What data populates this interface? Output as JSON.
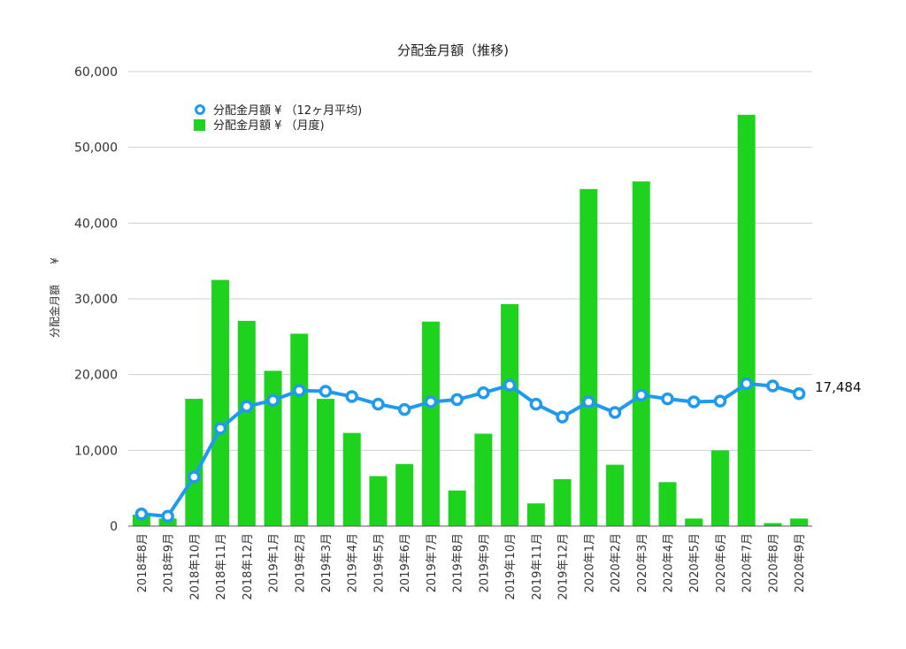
{
  "chart_data": {
    "type": "bar",
    "title": "分配金月額（推移)",
    "ylabel": "分配金月額",
    "ylabel_unit": "¥",
    "ylim": [
      0,
      60000
    ],
    "yticks": [
      0,
      10000,
      20000,
      30000,
      40000,
      50000,
      60000
    ],
    "ytick_labels": [
      "0",
      "10,000",
      "20,000",
      "30,000",
      "40,000",
      "50,000",
      "60,000"
    ],
    "grid": true,
    "legend_position": "top-left",
    "categories": [
      "2018年8月",
      "2018年9月",
      "2018年10月",
      "2018年11月",
      "2018年12月",
      "2019年1月",
      "2019年2月",
      "2019年3月",
      "2019年4月",
      "2019年5月",
      "2019年6月",
      "2019年7月",
      "2019年8月",
      "2019年9月",
      "2019年10月",
      "2019年11月",
      "2019年12月",
      "2020年1月",
      "2020年2月",
      "2020年3月",
      "2020年4月",
      "2020年5月",
      "2020年6月",
      "2020年7月",
      "2020年8月",
      "2020年9月"
    ],
    "series": [
      {
        "name": "分配金月額 ¥ （月度)",
        "type": "bar",
        "color": "#1ed31e",
        "values": [
          1500,
          1000,
          16800,
          32500,
          27100,
          20500,
          25400,
          16800,
          12300,
          6600,
          8200,
          27000,
          4700,
          12200,
          29300,
          3000,
          6200,
          44500,
          8100,
          45500,
          5800,
          1000,
          10000,
          54300,
          400,
          1000
        ]
      },
      {
        "name": "分配金月額 ¥ （12ヶ月平均)",
        "type": "line",
        "color": "#1e9af0",
        "values": [
          1600,
          1300,
          6500,
          12900,
          15800,
          16600,
          17900,
          17800,
          17100,
          16100,
          15400,
          16400,
          16700,
          17600,
          18600,
          16100,
          14400,
          16400,
          15000,
          17300,
          16800,
          16400,
          16500,
          18800,
          18500,
          17484
        ]
      }
    ],
    "annotations": [
      "17,484"
    ]
  }
}
